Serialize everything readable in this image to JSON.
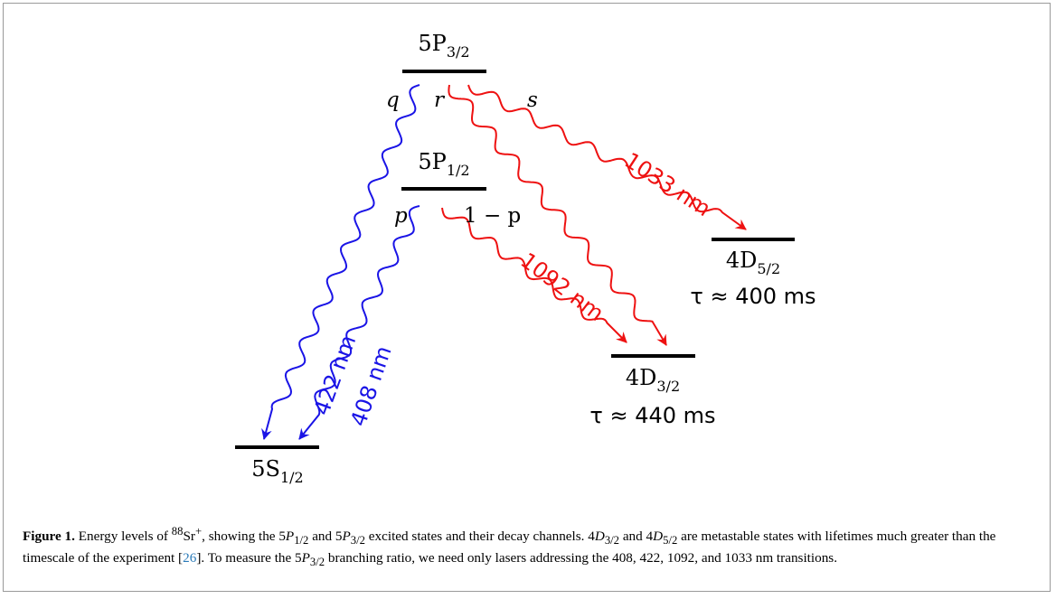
{
  "levels": {
    "p32": {
      "main": "5P",
      "sub": "3/2"
    },
    "p12": {
      "main": "5P",
      "sub": "1/2"
    },
    "s12": {
      "main": "5S",
      "sub": "1/2"
    },
    "d32": {
      "main": "4D",
      "sub": "3/2",
      "lifetime": "τ ≈ 440 ms"
    },
    "d52": {
      "main": "4D",
      "sub": "5/2",
      "lifetime": "τ ≈ 400 ms"
    }
  },
  "channels": {
    "q": "q",
    "r": "r",
    "s": "s",
    "p": "p",
    "one_minus_p": "1 − p"
  },
  "wavelengths": {
    "w408": "408 nm",
    "w422": "422 nm",
    "w1092": "1092 nm",
    "w1033": "1033 nm"
  },
  "colors": {
    "blue": "#1a14e6",
    "red": "#ee1111"
  },
  "caption": {
    "label": "Figure 1.",
    "t1": " Energy levels of ",
    "iso": "88",
    "sr": "Sr",
    "plus": "+",
    "t2": ", showing the 5",
    "P": "P",
    "s12": "1/2",
    "t3": " and 5",
    "s32": "3/2",
    "t4": " excited states and their decay channels. 4",
    "D": "D",
    "t5": " and 4",
    "s52": "5/2",
    "t6": " are metastable states with lifetimes much greater than the timescale of the experiment [",
    "ref": "26",
    "t7": "]. To measure the 5",
    "t8": " branching ratio, we need only lasers addressing the 408, 422, 1092, and 1033 nm transitions."
  }
}
